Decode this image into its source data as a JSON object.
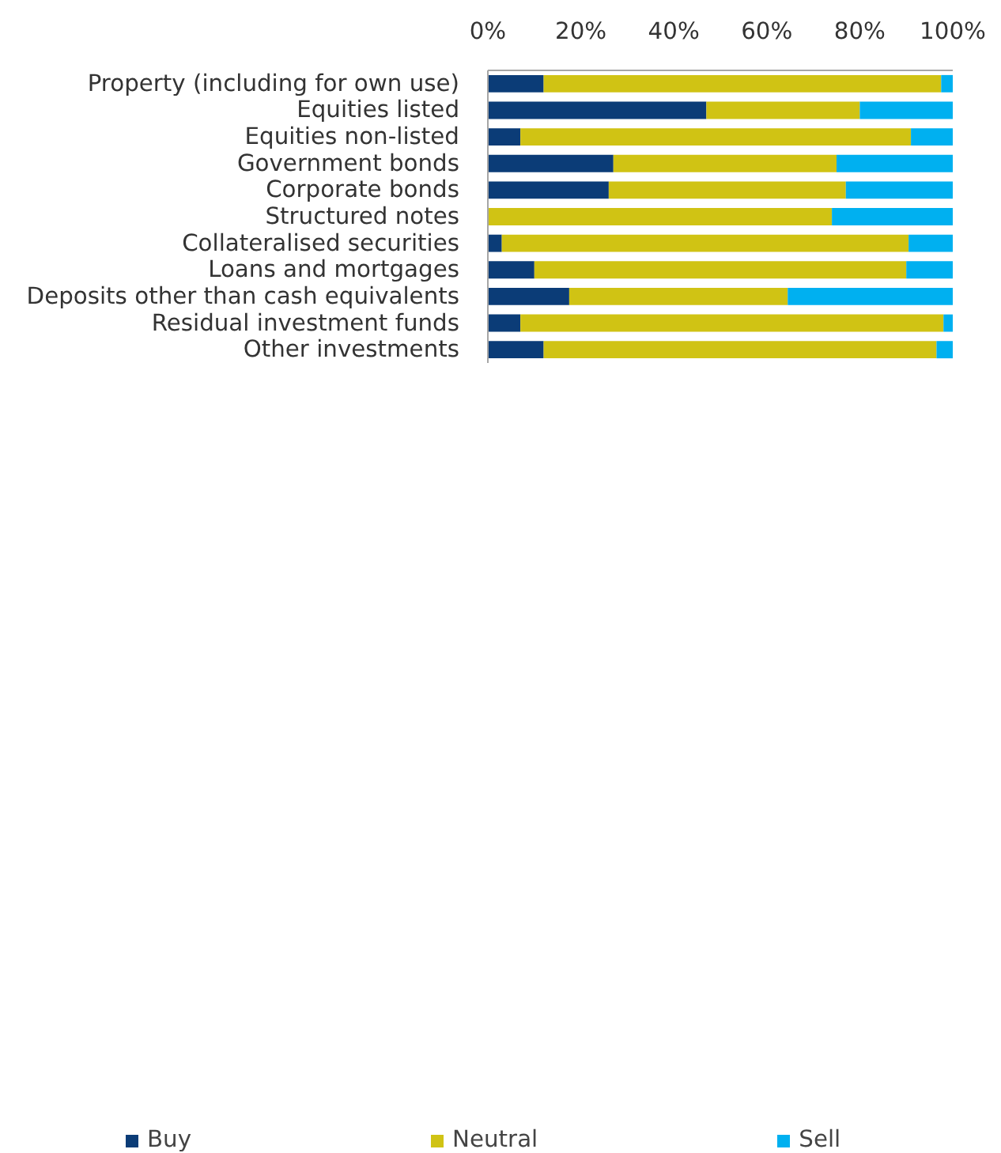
{
  "chart_data": {
    "type": "bar",
    "orientation": "horizontal",
    "stacked": true,
    "categories": [
      "Property (including for own use)",
      "Equities listed",
      "Equities non-listed",
      "Government bonds",
      "Corporate bonds",
      "Structured notes",
      "Collateralised securities",
      "Loans and mortgages",
      "Deposits other than cash equivalents",
      "Residual investment funds",
      "Other investments"
    ],
    "series": [
      {
        "name": "Buy",
        "color": "#0b3c77",
        "values": [
          12,
          47,
          7,
          27,
          26,
          0,
          3,
          10,
          17.5,
          7,
          12
        ]
      },
      {
        "name": "Neutral",
        "color": "#d0c314",
        "values": [
          85.5,
          33,
          84,
          48,
          51,
          74,
          87.5,
          80,
          47,
          91,
          84.5
        ]
      },
      {
        "name": "Sell",
        "color": "#00b0f0",
        "values": [
          2.5,
          20,
          9,
          25,
          23,
          26,
          9.5,
          10,
          35.5,
          2,
          3.5
        ]
      }
    ],
    "xlim": [
      0,
      100
    ],
    "xticks": [
      {
        "value": 0,
        "label": "0%"
      },
      {
        "value": 20,
        "label": "20%"
      },
      {
        "value": 40,
        "label": "40%"
      },
      {
        "value": 60,
        "label": "60%"
      },
      {
        "value": 80,
        "label": "80%"
      },
      {
        "value": 100,
        "label": "100%"
      }
    ],
    "grid": false,
    "legend": "bottom"
  }
}
